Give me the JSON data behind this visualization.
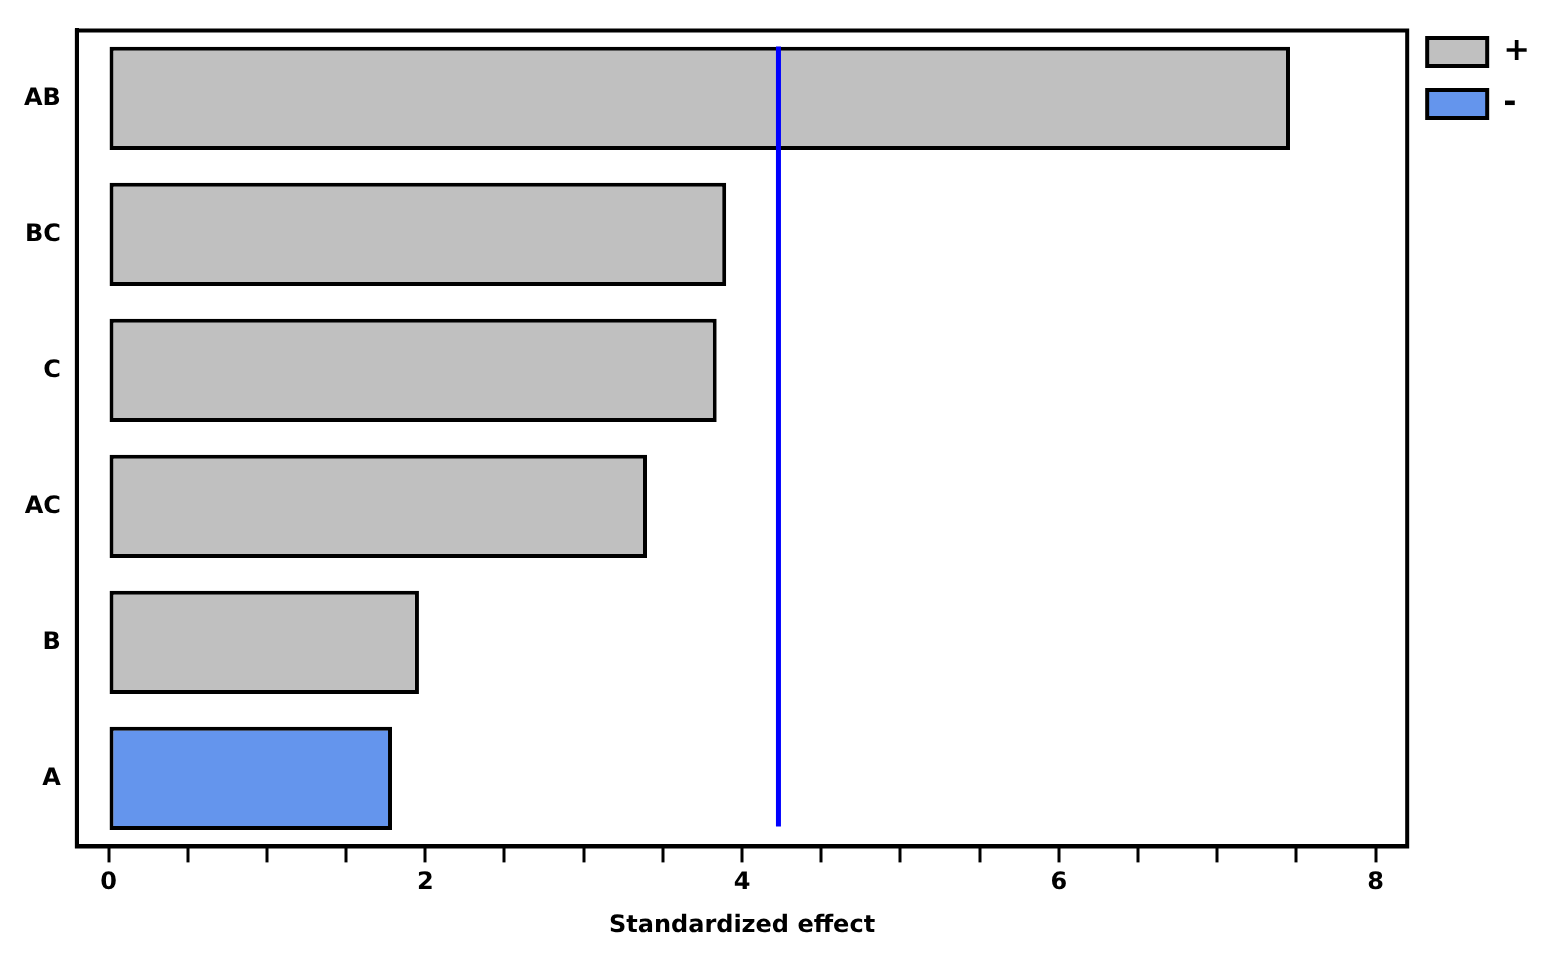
{
  "chart_data": {
    "type": "bar",
    "orientation": "horizontal",
    "xlabel": "Standardized effect",
    "categories": [
      "AB",
      "BC",
      "C",
      "AC",
      "B",
      "A"
    ],
    "series": [
      {
        "name": "+",
        "color": "#c0c0c0",
        "values": [
          7.46,
          3.9,
          3.84,
          3.4,
          1.96,
          null
        ]
      },
      {
        "name": "-",
        "color": "#6495ed",
        "values": [
          null,
          null,
          null,
          null,
          null,
          1.79
        ]
      }
    ],
    "xlim": [
      -0.2,
      8.2
    ],
    "xticks": [
      0,
      {
        "value": 0.5,
        "label": null
      },
      {
        "value": 1,
        "label": null
      },
      {
        "value": 1.5,
        "label": null
      },
      2,
      {
        "value": 2.5,
        "label": null
      },
      {
        "value": 3,
        "label": null
      },
      {
        "value": 3.5,
        "label": null
      },
      4,
      {
        "value": 4.5,
        "label": null
      },
      {
        "value": 5,
        "label": null
      },
      {
        "value": 5.5,
        "label": null
      },
      6,
      {
        "value": 6.5,
        "label": null
      },
      {
        "value": 7,
        "label": null
      },
      {
        "value": 7.5,
        "label": null
      },
      8
    ],
    "ref_lines": [
      {
        "axis": "x",
        "value": 4.23,
        "color": "#0000ff"
      }
    ],
    "grid": false,
    "legend": "top right"
  }
}
